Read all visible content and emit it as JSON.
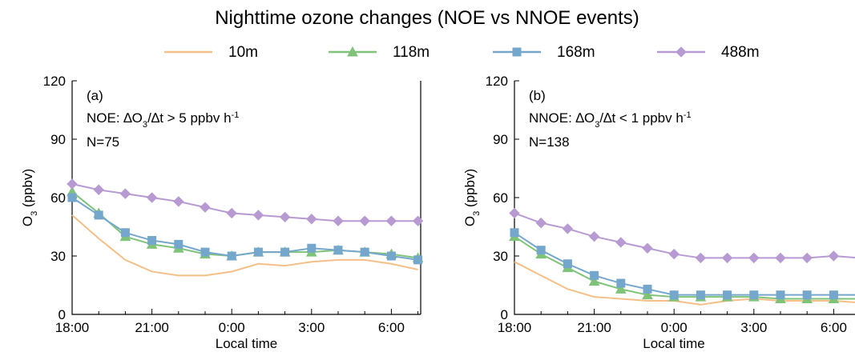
{
  "title": "Nighttime ozone changes (NOE vs NNOE events)",
  "chart_data": [
    {
      "type": "line",
      "panel_label": "(a)",
      "annotation": [
        "NOE: ∆O",
        "3",
        "/∆t > 5 ppbv h",
        "-1"
      ],
      "count_label": "N=75",
      "x_label": "Local time",
      "y_label": [
        "O",
        "3",
        " (ppbv)"
      ],
      "categories": [
        "18:00",
        null,
        null,
        "21:00",
        null,
        null,
        "0:00",
        null,
        null,
        "3:00",
        null,
        null,
        "6:00",
        null
      ],
      "ylim": [
        0,
        120
      ],
      "yticks": [
        0,
        30,
        60,
        90,
        120
      ],
      "series": [
        {
          "name": "10m",
          "color": "#f5bf88",
          "marker": "none",
          "values": [
            51,
            39,
            28,
            22,
            20,
            20,
            22,
            26,
            25,
            27,
            28,
            28,
            26,
            23
          ]
        },
        {
          "name": "118m",
          "color": "#7fc378",
          "marker": "triangle",
          "values": [
            63,
            52,
            40,
            36,
            34,
            31,
            30,
            32,
            32,
            32,
            33,
            32,
            31,
            29
          ]
        },
        {
          "name": "168m",
          "color": "#75a7cc",
          "marker": "square",
          "values": [
            60,
            51,
            42,
            38,
            36,
            32,
            30,
            32,
            32,
            34,
            33,
            32,
            30,
            28
          ]
        },
        {
          "name": "488m",
          "color": "#b79ad1",
          "marker": "diamond",
          "values": [
            67,
            64,
            62,
            60,
            58,
            55,
            52,
            51,
            50,
            49,
            48,
            48,
            48,
            48
          ]
        }
      ]
    },
    {
      "type": "line",
      "panel_label": "(b)",
      "annotation": [
        "NNOE: ∆O",
        "3",
        "/∆t < 1 ppbv h",
        "-1"
      ],
      "count_label": "N=138",
      "x_label": "Local time",
      "y_label": [
        "O",
        "3",
        " (ppbv)"
      ],
      "categories": [
        "18:00",
        null,
        null,
        "21:00",
        null,
        null,
        "0:00",
        null,
        null,
        "3:00",
        null,
        null,
        "6:00",
        null
      ],
      "ylim": [
        0,
        120
      ],
      "yticks": [
        0,
        30,
        60,
        90,
        120
      ],
      "series": [
        {
          "name": "10m",
          "color": "#f5bf88",
          "marker": "none",
          "values": [
            27,
            20,
            13,
            9,
            8,
            7,
            7,
            5,
            7,
            8,
            7,
            7,
            7,
            6
          ]
        },
        {
          "name": "118m",
          "color": "#7fc378",
          "marker": "triangle",
          "values": [
            40,
            31,
            24,
            17,
            13,
            10,
            9,
            9,
            9,
            9,
            8,
            8,
            8,
            8
          ]
        },
        {
          "name": "168m",
          "color": "#75a7cc",
          "marker": "square",
          "values": [
            42,
            33,
            26,
            20,
            16,
            13,
            10,
            10,
            10,
            10,
            10,
            10,
            10,
            10
          ]
        },
        {
          "name": "488m",
          "color": "#b79ad1",
          "marker": "diamond",
          "values": [
            52,
            47,
            44,
            40,
            37,
            34,
            31,
            29,
            29,
            29,
            29,
            29,
            30,
            29
          ]
        }
      ]
    }
  ]
}
